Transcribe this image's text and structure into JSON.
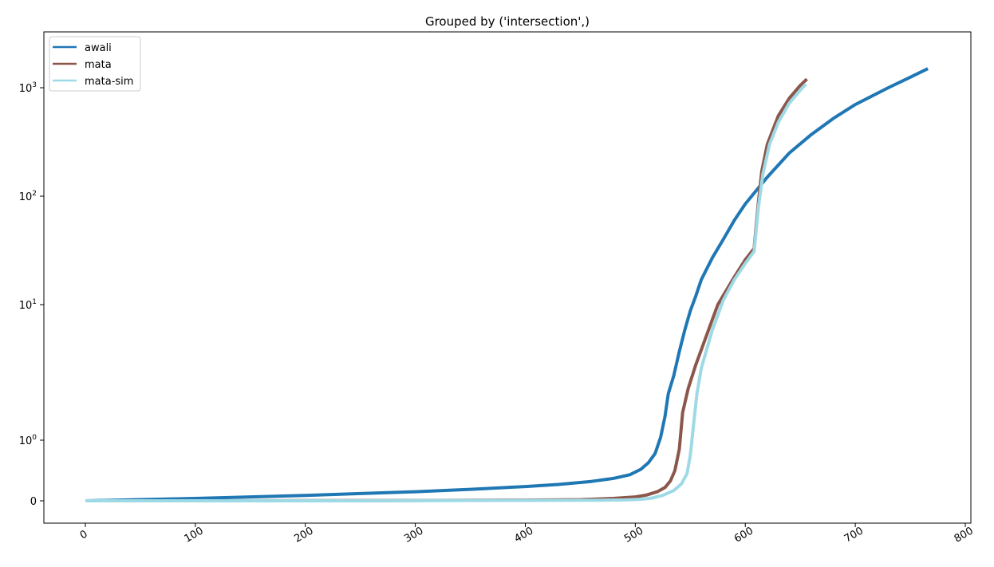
{
  "chart_data": {
    "type": "line",
    "title": "Grouped by ('intersection',)",
    "xlabel": "",
    "ylabel": "",
    "xlim": [
      -37,
      807
    ],
    "ylim_note": "symlog y axis",
    "y_scale": "symlog",
    "legend_position": "upper-left",
    "grid": false,
    "x_ticks": [
      {
        "value": 0,
        "label": "0"
      },
      {
        "value": 100,
        "label": "100"
      },
      {
        "value": 200,
        "label": "200"
      },
      {
        "value": 300,
        "label": "300"
      },
      {
        "value": 400,
        "label": "400"
      },
      {
        "value": 500,
        "label": "500"
      },
      {
        "value": 600,
        "label": "600"
      },
      {
        "value": 700,
        "label": "700"
      },
      {
        "value": 800,
        "label": "800"
      }
    ],
    "y_ticks": [
      {
        "value": 0,
        "label": "0",
        "exp": ""
      },
      {
        "value": 1,
        "label": "10",
        "exp": "0"
      },
      {
        "value": 10,
        "label": "10",
        "exp": "1"
      },
      {
        "value": 100,
        "label": "10",
        "exp": "2"
      },
      {
        "value": 1000,
        "label": "10",
        "exp": "3"
      }
    ],
    "series": [
      {
        "name": "awali",
        "color": "#1f77b4",
        "points": [
          [
            0,
            0.0
          ],
          [
            50,
            0.02
          ],
          [
            100,
            0.04
          ],
          [
            150,
            0.065
          ],
          [
            200,
            0.09
          ],
          [
            250,
            0.12
          ],
          [
            300,
            0.15
          ],
          [
            350,
            0.19
          ],
          [
            400,
            0.235
          ],
          [
            430,
            0.27
          ],
          [
            460,
            0.32
          ],
          [
            480,
            0.37
          ],
          [
            495,
            0.43
          ],
          [
            505,
            0.52
          ],
          [
            512,
            0.63
          ],
          [
            518,
            0.78
          ],
          [
            523,
            1.05
          ],
          [
            527,
            1.5
          ],
          [
            530,
            2.2
          ],
          [
            535,
            3.0
          ],
          [
            540,
            4.5
          ],
          [
            545,
            6.5
          ],
          [
            550,
            9.0
          ],
          [
            555,
            12.0
          ],
          [
            560,
            17.0
          ],
          [
            570,
            27.0
          ],
          [
            580,
            40.0
          ],
          [
            590,
            60.0
          ],
          [
            600,
            85.0
          ],
          [
            620,
            150.0
          ],
          [
            640,
            250.0
          ],
          [
            660,
            370.0
          ],
          [
            680,
            520.0
          ],
          [
            700,
            700.0
          ],
          [
            730,
            1000.0
          ],
          [
            750,
            1250.0
          ],
          [
            766,
            1500.0
          ]
        ]
      },
      {
        "name": "mata",
        "color": "#8c564b",
        "points": [
          [
            0,
            0.0
          ],
          [
            100,
            0.0
          ],
          [
            200,
            0.002
          ],
          [
            300,
            0.005
          ],
          [
            400,
            0.012
          ],
          [
            450,
            0.02
          ],
          [
            480,
            0.04
          ],
          [
            500,
            0.065
          ],
          [
            510,
            0.095
          ],
          [
            520,
            0.15
          ],
          [
            527,
            0.22
          ],
          [
            532,
            0.33
          ],
          [
            536,
            0.5
          ],
          [
            540,
            0.85
          ],
          [
            543,
            1.6
          ],
          [
            548,
            2.4
          ],
          [
            555,
            3.6
          ],
          [
            565,
            6.0
          ],
          [
            575,
            10.0
          ],
          [
            590,
            18.0
          ],
          [
            600,
            26.0
          ],
          [
            608,
            33.0
          ],
          [
            612,
            90.0
          ],
          [
            615,
            170.0
          ],
          [
            620,
            300.0
          ],
          [
            630,
            550.0
          ],
          [
            640,
            800.0
          ],
          [
            650,
            1050.0
          ],
          [
            656,
            1200.0
          ]
        ]
      },
      {
        "name": "mata-sim",
        "color": "#9edae5",
        "points": [
          [
            0,
            0.0
          ],
          [
            100,
            0.0
          ],
          [
            200,
            0.0
          ],
          [
            300,
            0.003
          ],
          [
            400,
            0.006
          ],
          [
            470,
            0.01
          ],
          [
            490,
            0.015
          ],
          [
            505,
            0.025
          ],
          [
            515,
            0.045
          ],
          [
            525,
            0.09
          ],
          [
            535,
            0.17
          ],
          [
            542,
            0.28
          ],
          [
            547,
            0.45
          ],
          [
            550,
            0.75
          ],
          [
            553,
            1.3
          ],
          [
            556,
            2.2
          ],
          [
            560,
            3.4
          ],
          [
            570,
            6.5
          ],
          [
            580,
            11.0
          ],
          [
            590,
            17.0
          ],
          [
            600,
            24.0
          ],
          [
            608,
            31.0
          ],
          [
            612,
            80.0
          ],
          [
            616,
            160.0
          ],
          [
            622,
            300.0
          ],
          [
            630,
            480.0
          ],
          [
            640,
            720.0
          ],
          [
            650,
            950.0
          ],
          [
            655,
            1080.0
          ]
        ]
      }
    ]
  }
}
